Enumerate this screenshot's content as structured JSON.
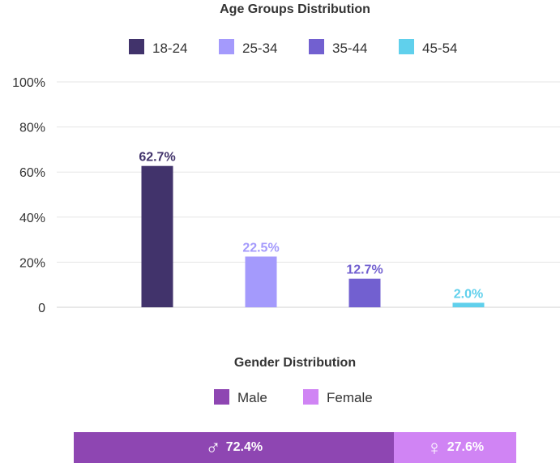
{
  "chart_data": [
    {
      "type": "bar",
      "title": "Age Groups Distribution",
      "categories": [
        "18-24",
        "25-34",
        "35-44",
        "45-54"
      ],
      "values": [
        62.7,
        22.5,
        12.7,
        2.0
      ],
      "value_labels": [
        "62.7%",
        "22.5%",
        "12.7%",
        "2.0%"
      ],
      "colors": [
        "#41336b",
        "#a49afc",
        "#7260d0",
        "#60d0ec"
      ],
      "legend": [
        "18-24",
        "25-34",
        "35-44",
        "45-54"
      ],
      "legend_position": "top",
      "ylim": [
        0,
        100
      ],
      "yticks": [
        0,
        20,
        40,
        60,
        80,
        100
      ],
      "ytick_labels": [
        "0",
        "20%",
        "40%",
        "60%",
        "80%",
        "100%"
      ],
      "grid": true
    },
    {
      "type": "bar",
      "orientation": "stacked-horizontal",
      "title": "Gender Distribution",
      "categories": [
        "Male",
        "Female"
      ],
      "values": [
        72.4,
        27.6
      ],
      "value_labels": [
        "72.4%",
        "27.6%"
      ],
      "colors": [
        "#8e46b2",
        "#d084f4"
      ],
      "icons": [
        "male-icon",
        "female-icon"
      ],
      "legend": [
        "Male",
        "Female"
      ],
      "legend_position": "top"
    }
  ]
}
